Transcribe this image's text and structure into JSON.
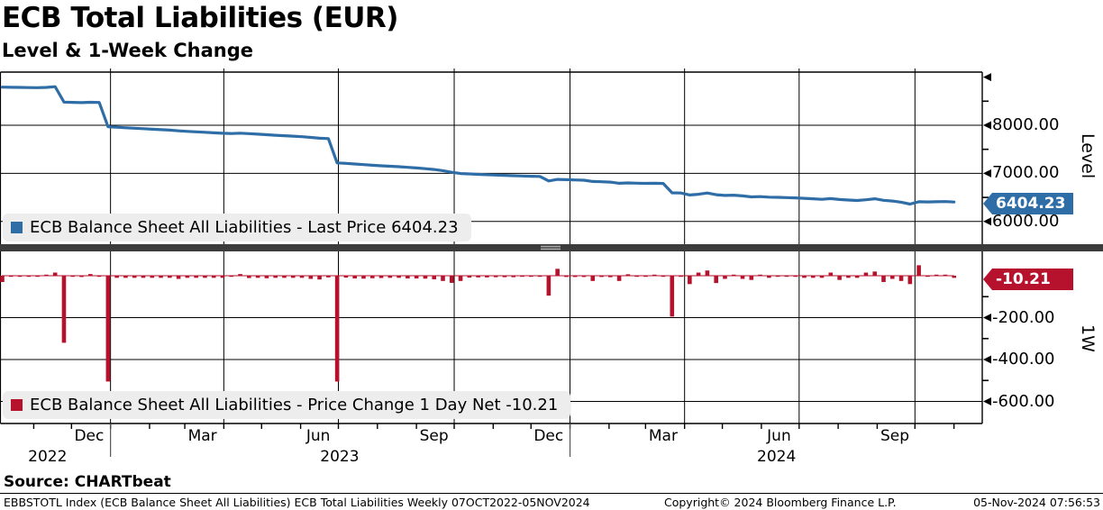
{
  "header": {
    "title": "ECB Total Liabilities (EUR)",
    "subtitle": "Level & 1-Week Change"
  },
  "source": {
    "label": "Source: CHARTbeat"
  },
  "statusbar": {
    "left": "EBBSTOTL Index (ECB Balance Sheet All Liabilities) ECB Total Liabilities Weekly 07OCT2022-05NOV2024",
    "center": "Copyright© 2024 Bloomberg Finance L.P.",
    "right": "05-Nov-2024 07:56:53"
  },
  "colors": {
    "level_line": "#2f6da7",
    "change_bar": "#b7122d",
    "grid": "#000000",
    "legend_bg": "#ededed",
    "separator": "#3c3c3c",
    "separator_grip": "#a8a8a8"
  },
  "chart_data": {
    "type": "line+bar",
    "title": "ECB Total Liabilities (EUR)",
    "subtitle": "Level & 1-Week Change",
    "frequency": "Weekly",
    "date_range": "07OCT2022-05NOV2024",
    "x": {
      "days_total": 760,
      "points": 109,
      "month_tick_days": [
        25,
        55,
        86,
        117,
        145,
        176,
        206,
        237,
        267,
        298,
        329,
        359,
        390,
        420,
        451,
        482,
        511,
        542,
        572,
        603,
        633,
        664,
        695,
        725,
        756
      ],
      "quarter_line_days": [
        86,
        176,
        267,
        359,
        451,
        542,
        633,
        725
      ],
      "year_separator_days": [
        86,
        451
      ],
      "month_labels": [
        {
          "label": "Dec",
          "day": 69
        },
        {
          "label": "Mar",
          "day": 159
        },
        {
          "label": "Jun",
          "day": 251
        },
        {
          "label": "Sep",
          "day": 343
        },
        {
          "label": "Dec",
          "day": 434
        },
        {
          "label": "Mar",
          "day": 525
        },
        {
          "label": "Jun",
          "day": 617
        },
        {
          "label": "Sep",
          "day": 709
        }
      ],
      "year_labels": [
        {
          "label": "2022",
          "day": 36
        },
        {
          "label": "2023",
          "day": 268
        },
        {
          "label": "2024",
          "day": 615
        }
      ]
    },
    "panels": [
      {
        "name": "Level",
        "type": "line",
        "axis_label": "Level",
        "legend": "ECB Balance Sheet All Liabilities - Last Price 6404.23",
        "last_value": 6404.23,
        "badge": "6404.23",
        "yticks": [
          {
            "value": 9000,
            "label": ""
          },
          {
            "value": 8000,
            "label": "8000.00"
          },
          {
            "value": 7000,
            "label": "7000.00"
          },
          {
            "value": 6000,
            "label": "6000.00"
          }
        ],
        "minor_yticks": [
          8500,
          7500,
          6500
        ],
        "values": [
          8792,
          8789,
          8786,
          8783,
          8781,
          8786,
          8801,
          8481,
          8476,
          8470,
          8478,
          8473,
          7968,
          7958,
          7948,
          7938,
          7928,
          7918,
          7908,
          7898,
          7883,
          7873,
          7863,
          7853,
          7843,
          7833,
          7828,
          7836,
          7825,
          7815,
          7803,
          7793,
          7783,
          7773,
          7763,
          7748,
          7730,
          7722,
          7217,
          7208,
          7195,
          7181,
          7169,
          7158,
          7148,
          7138,
          7125,
          7112,
          7098,
          7081,
          7056,
          7022,
          6997,
          6988,
          6980,
          6972,
          6965,
          6958,
          6951,
          6946,
          6941,
          6937,
          6842,
          6875,
          6869,
          6863,
          6857,
          6832,
          6826,
          6819,
          6794,
          6801,
          6796,
          6792,
          6794,
          6791,
          6596,
          6591,
          6551,
          6566,
          6591,
          6556,
          6541,
          6546,
          6531,
          6511,
          6516,
          6506,
          6501,
          6496,
          6491,
          6481,
          6471,
          6461,
          6476,
          6456,
          6446,
          6436,
          6451,
          6471,
          6441,
          6426,
          6401,
          6361,
          6411,
          6407,
          6410,
          6414.44,
          6404.23
        ]
      },
      {
        "name": "1W",
        "type": "bar",
        "axis_label": "1W",
        "legend": "ECB Balance Sheet All Liabilities - Price Change 1 Day Net -10.21",
        "last_value": -10.21,
        "badge": "-10.21",
        "prev_level": 8822,
        "derive": "diff_of_level",
        "yticks": [
          {
            "value": -200,
            "label": "-200.00"
          },
          {
            "value": -400,
            "label": "-400.00"
          },
          {
            "value": -600,
            "label": "-600.00"
          }
        ],
        "minor_yticks": [
          -100,
          -300,
          -500
        ]
      }
    ]
  }
}
